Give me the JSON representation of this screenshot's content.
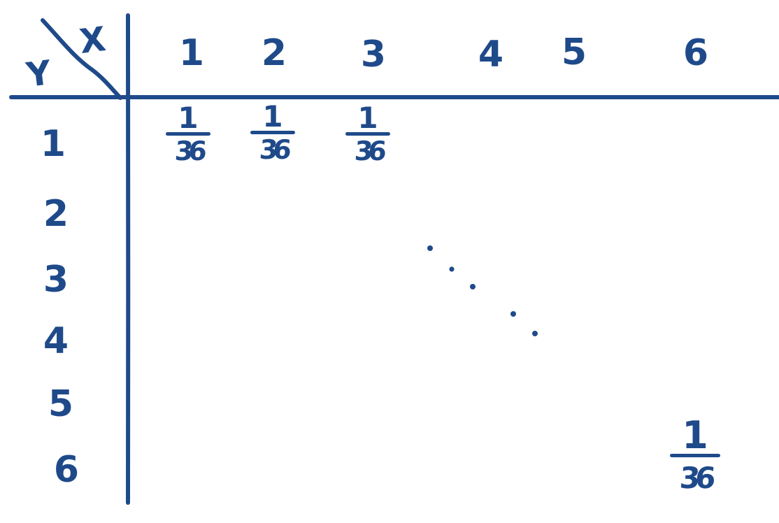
{
  "table": {
    "x_label": "X",
    "y_label": "Y",
    "columns": [
      "1",
      "2",
      "3",
      "4",
      "5",
      "6"
    ],
    "rows": [
      "1",
      "2",
      "3",
      "4",
      "5",
      "6"
    ],
    "entries": [
      {
        "row": "1",
        "column": "1",
        "numerator": "1",
        "denominator": "36"
      },
      {
        "row": "1",
        "column": "2",
        "numerator": "1",
        "denominator": "36"
      },
      {
        "row": "1",
        "column": "3",
        "numerator": "1",
        "denominator": "36"
      },
      {
        "row": "6",
        "column": "6",
        "numerator": "1",
        "denominator": "36"
      }
    ]
  },
  "colors": {
    "ink": "#1f4a8a",
    "background": "#ffffff"
  }
}
